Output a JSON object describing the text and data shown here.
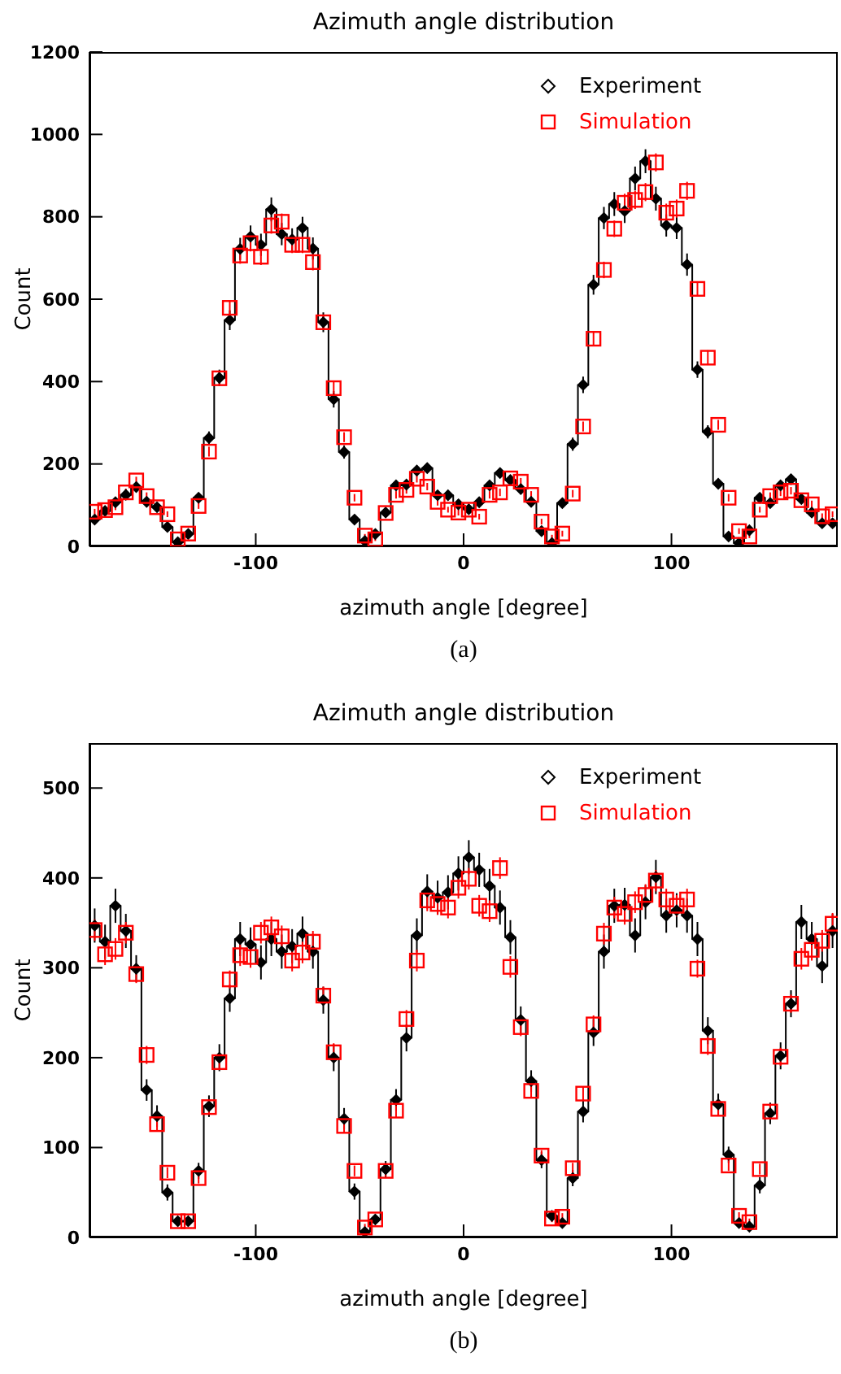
{
  "chart_data": [
    {
      "type": "step",
      "title": "Azimuth angle distribution",
      "xlabel": "azimuth angle [degree]",
      "ylabel": "Count",
      "annotations": [
        "(a)"
      ],
      "legend": "top right",
      "xlim": [
        -180,
        180
      ],
      "xticks": [
        -100,
        0,
        100
      ],
      "ylim": [
        0,
        1200
      ],
      "yticks": [
        0,
        200,
        400,
        600,
        800,
        1000,
        1200
      ],
      "x": [
        -177.5,
        -172.5,
        -167.5,
        -162.5,
        -157.5,
        -152.5,
        -147.5,
        -142.5,
        -137.5,
        -132.5,
        -127.5,
        -122.5,
        -117.5,
        -112.5,
        -107.5,
        -102.5,
        -97.5,
        -92.5,
        -87.5,
        -82.5,
        -77.5,
        -72.5,
        -67.5,
        -62.5,
        -57.5,
        -52.5,
        -47.5,
        -42.5,
        -37.5,
        -32.5,
        -27.5,
        -22.5,
        -17.5,
        -12.5,
        -7.5,
        -2.5,
        2.5,
        7.5,
        12.5,
        17.5,
        22.5,
        27.5,
        32.5,
        37.5,
        42.5,
        47.5,
        52.5,
        57.5,
        62.5,
        67.5,
        72.5,
        77.5,
        82.5,
        87.5,
        92.5,
        97.5,
        102.5,
        107.5,
        112.5,
        117.5,
        122.5,
        127.5,
        132.5,
        137.5,
        142.5,
        147.5,
        152.5,
        157.5,
        162.5,
        167.5,
        172.5,
        177.5
      ],
      "series": [
        {
          "name": "Experiment",
          "type": "step",
          "marker": "diamond",
          "color": "#000000",
          "values": [
            65,
            86,
            107,
            125,
            144,
            108,
            95,
            47,
            10,
            30,
            118,
            263,
            409,
            549,
            722,
            752,
            732,
            818,
            758,
            745,
            773,
            723,
            544,
            357,
            229,
            65,
            13,
            30,
            82,
            148,
            150,
            184,
            190,
            124,
            124,
            102,
            90,
            107,
            148,
            178,
            161,
            139,
            108,
            37,
            8,
            105,
            248,
            392,
            635,
            797,
            831,
            814,
            893,
            935,
            844,
            779,
            773,
            684,
            429,
            278,
            152,
            24,
            8,
            39,
            118,
            105,
            148,
            163,
            115,
            82,
            56,
            56
          ],
          "errors": [
            9,
            9,
            12,
            12,
            12,
            12,
            9,
            9,
            5,
            9,
            12,
            16,
            20,
            24,
            27,
            27,
            27,
            29,
            27,
            27,
            27,
            27,
            24,
            20,
            16,
            9,
            5,
            9,
            9,
            12,
            12,
            12,
            12,
            12,
            12,
            12,
            9,
            12,
            12,
            12,
            12,
            12,
            12,
            9,
            5,
            12,
            16,
            20,
            24,
            27,
            29,
            29,
            29,
            29,
            29,
            27,
            27,
            27,
            20,
            16,
            12,
            5,
            5,
            9,
            12,
            12,
            12,
            12,
            12,
            9,
            9,
            9
          ]
        },
        {
          "name": "Simulation",
          "type": "scatter",
          "marker": "square",
          "color": "#ff0000",
          "values": [
            84,
            88,
            95,
            131,
            160,
            122,
            95,
            78,
            17,
            31,
            98,
            230,
            408,
            579,
            706,
            736,
            703,
            779,
            788,
            732,
            732,
            690,
            544,
            384,
            265,
            118,
            26,
            17,
            81,
            125,
            137,
            164,
            145,
            108,
            89,
            82,
            89,
            72,
            125,
            131,
            165,
            157,
            125,
            60,
            24,
            31,
            128,
            291,
            504,
            671,
            771,
            834,
            841,
            860,
            932,
            810,
            820,
            863,
            625,
            458,
            295,
            118,
            37,
            24,
            89,
            122,
            131,
            135,
            112,
            102,
            73,
            78
          ],
          "errors": [
            7,
            7,
            7,
            9,
            9,
            9,
            7,
            7,
            4,
            7,
            7,
            12,
            15,
            18,
            20,
            20,
            20,
            20,
            20,
            20,
            20,
            20,
            18,
            15,
            12,
            9,
            4,
            4,
            7,
            9,
            9,
            9,
            9,
            9,
            7,
            7,
            7,
            7,
            9,
            9,
            9,
            9,
            9,
            7,
            4,
            7,
            9,
            12,
            18,
            20,
            20,
            22,
            22,
            22,
            22,
            22,
            22,
            22,
            18,
            18,
            12,
            9,
            7,
            4,
            7,
            9,
            9,
            9,
            9,
            9,
            7,
            7
          ]
        }
      ]
    },
    {
      "type": "step",
      "title": "Azimuth angle distribution",
      "xlabel": "azimuth angle [degree]",
      "ylabel": "Count",
      "annotations": [
        "(b)"
      ],
      "legend": "top right",
      "xlim": [
        -180,
        180
      ],
      "xticks": [
        -100,
        0,
        100
      ],
      "ylim": [
        0,
        550
      ],
      "yticks": [
        0,
        100,
        200,
        300,
        400,
        500
      ],
      "x": [
        -177.5,
        -172.5,
        -167.5,
        -162.5,
        -157.5,
        -152.5,
        -147.5,
        -142.5,
        -137.5,
        -132.5,
        -127.5,
        -122.5,
        -117.5,
        -112.5,
        -107.5,
        -102.5,
        -97.5,
        -92.5,
        -87.5,
        -82.5,
        -77.5,
        -72.5,
        -67.5,
        -62.5,
        -57.5,
        -52.5,
        -47.5,
        -42.5,
        -37.5,
        -32.5,
        -27.5,
        -22.5,
        -17.5,
        -12.5,
        -7.5,
        -2.5,
        2.5,
        7.5,
        12.5,
        17.5,
        22.5,
        27.5,
        32.5,
        37.5,
        42.5,
        47.5,
        52.5,
        57.5,
        62.5,
        67.5,
        72.5,
        77.5,
        82.5,
        87.5,
        92.5,
        97.5,
        102.5,
        107.5,
        112.5,
        117.5,
        122.5,
        127.5,
        132.5,
        137.5,
        142.5,
        147.5,
        152.5,
        157.5,
        162.5,
        167.5,
        172.5,
        177.5
      ],
      "series": [
        {
          "name": "Experiment",
          "type": "step",
          "marker": "diamond",
          "color": "#000000",
          "values": [
            347,
            329,
            369,
            341,
            299,
            164,
            135,
            50,
            18,
            18,
            74,
            146,
            200,
            266,
            332,
            326,
            306,
            332,
            318,
            324,
            338,
            318,
            264,
            200,
            132,
            51,
            6,
            20,
            76,
            153,
            222,
            336,
            385,
            378,
            384,
            405,
            423,
            409,
            391,
            367,
            334,
            242,
            174,
            86,
            24,
            16,
            66,
            140,
            228,
            318,
            369,
            370,
            336,
            373,
            401,
            358,
            364,
            358,
            332,
            230,
            148,
            92,
            16,
            12,
            58,
            138,
            202,
            260,
            351,
            332,
            302,
            341
          ],
          "errors": [
            19,
            19,
            19,
            19,
            15,
            12,
            12,
            9,
            5,
            5,
            9,
            12,
            15,
            15,
            19,
            19,
            19,
            19,
            19,
            19,
            19,
            19,
            15,
            15,
            12,
            9,
            5,
            5,
            9,
            12,
            15,
            19,
            19,
            19,
            19,
            19,
            19,
            19,
            19,
            19,
            19,
            15,
            12,
            9,
            5,
            5,
            9,
            12,
            15,
            19,
            19,
            19,
            19,
            19,
            19,
            19,
            19,
            19,
            19,
            15,
            12,
            9,
            5,
            5,
            9,
            12,
            15,
            15,
            19,
            19,
            19,
            19
          ]
        },
        {
          "name": "Simulation",
          "type": "scatter",
          "marker": "square",
          "color": "#ff0000",
          "values": [
            342,
            315,
            321,
            339,
            293,
            203,
            126,
            72,
            18,
            18,
            66,
            145,
            195,
            287,
            314,
            312,
            339,
            345,
            335,
            308,
            317,
            329,
            269,
            206,
            124,
            74,
            11,
            20,
            74,
            141,
            243,
            308,
            375,
            371,
            367,
            389,
            399,
            369,
            363,
            411,
            301,
            234,
            163,
            91,
            21,
            23,
            77,
            160,
            237,
            338,
            367,
            360,
            373,
            381,
            397,
            376,
            369,
            376,
            299,
            213,
            143,
            80,
            24,
            17,
            76,
            140,
            201,
            260,
            310,
            320,
            330,
            349
          ],
          "errors": [
            12,
            12,
            12,
            12,
            10,
            10,
            8,
            6,
            4,
            4,
            6,
            8,
            8,
            10,
            12,
            12,
            12,
            12,
            12,
            12,
            12,
            12,
            10,
            10,
            8,
            6,
            4,
            4,
            6,
            8,
            10,
            12,
            12,
            12,
            12,
            12,
            12,
            12,
            12,
            12,
            12,
            10,
            8,
            6,
            4,
            4,
            6,
            8,
            10,
            12,
            12,
            12,
            12,
            12,
            12,
            12,
            12,
            12,
            10,
            10,
            8,
            6,
            4,
            4,
            6,
            8,
            10,
            10,
            12,
            12,
            12,
            12
          ]
        }
      ]
    }
  ]
}
